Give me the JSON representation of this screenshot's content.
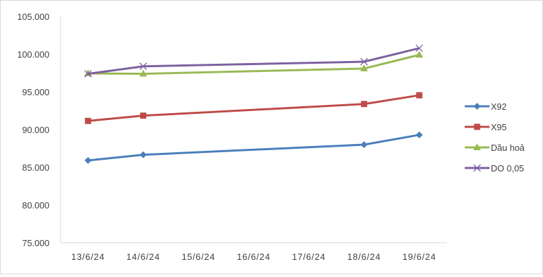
{
  "chart_data": {
    "type": "line",
    "title": "",
    "xlabel": "",
    "ylabel": "",
    "categories": [
      "13/6/24",
      "14/6/24",
      "15/6/24",
      "16/6/24",
      "17/6/24",
      "18/6/24",
      "19/6/24"
    ],
    "ylim": [
      75000,
      105000
    ],
    "yticks": [
      75000,
      80000,
      85000,
      90000,
      95000,
      100000,
      105000
    ],
    "ytick_labels": [
      "75.000",
      "80.000",
      "85.000",
      "90.000",
      "95.000",
      "100.000",
      "105.000"
    ],
    "grid": false,
    "legend": "right",
    "series": [
      {
        "name": "X92",
        "color": "#4a7ebb",
        "marker": "diamond",
        "values": [
          85910,
          86660,
          null,
          null,
          null,
          88000,
          89300
        ]
      },
      {
        "name": "X95",
        "color": "#be4b48",
        "marker": "square",
        "values": [
          91150,
          91850,
          null,
          null,
          null,
          93390,
          94550
        ]
      },
      {
        "name": "Dầu hoả",
        "color": "#98b954",
        "marker": "triangle",
        "values": [
          97450,
          97400,
          null,
          null,
          null,
          98090,
          99910
        ]
      },
      {
        "name": "DO 0,05",
        "color": "#7d60a0",
        "marker": "x",
        "values": [
          97400,
          98390,
          null,
          null,
          null,
          99000,
          100790
        ]
      }
    ]
  }
}
